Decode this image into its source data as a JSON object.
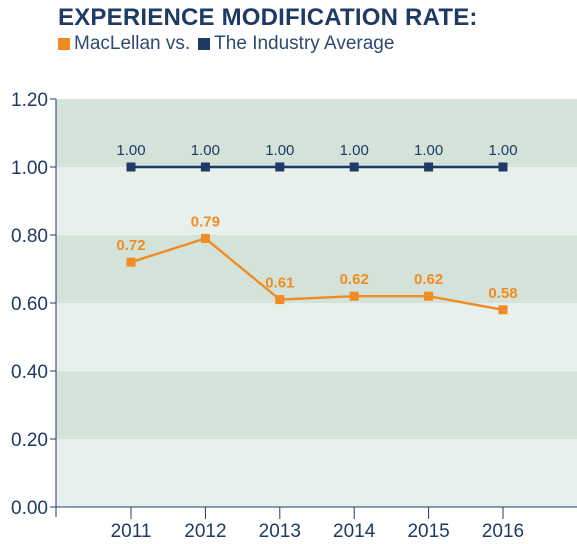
{
  "header": {
    "title": "EXPERIENCE MODIFICATION RATE:"
  },
  "legend": {
    "items": [
      {
        "label": "MacLellan vs.",
        "color": "#f08c22"
      },
      {
        "label": "The Industry Average",
        "color": "#1f3a64"
      }
    ]
  },
  "chart_data": {
    "type": "line",
    "title": "EXPERIENCE MODIFICATION RATE:",
    "xlabel": "",
    "ylabel": "",
    "categories": [
      "2011",
      "2012",
      "2013",
      "2014",
      "2015",
      "2016"
    ],
    "ylim": [
      0,
      1.2
    ],
    "yticks": [
      "0.00",
      "0.20",
      "0.40",
      "0.60",
      "0.80",
      "1.00",
      "1.20"
    ],
    "grid": "alternating horizontal bands",
    "series": [
      {
        "name": "MacLellan",
        "color": "#f08c22",
        "values": [
          0.72,
          0.79,
          0.61,
          0.62,
          0.62,
          0.58
        ],
        "labels": [
          "0.72",
          "0.79",
          "0.61",
          "0.62",
          "0.62",
          "0.58"
        ],
        "label_weight": "bold"
      },
      {
        "name": "The Industry Average",
        "color": "#1f3a64",
        "values": [
          1.0,
          1.0,
          1.0,
          1.0,
          1.0,
          1.0
        ],
        "labels": [
          "1.00",
          "1.00",
          "1.00",
          "1.00",
          "1.00",
          "1.00"
        ],
        "label_weight": "normal"
      }
    ],
    "band_colors": [
      "#d3e3d9",
      "#e7f0eb"
    ],
    "axis_color": "#1f3a64"
  }
}
